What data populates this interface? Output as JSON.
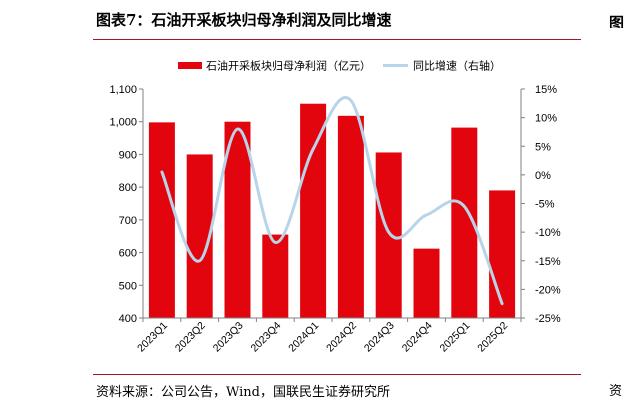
{
  "page": {
    "title": "图表7：石油开采板块归母净利润及同比增速",
    "source": "资料来源：公司公告，Wind，国联民生证券研究所",
    "right_fragment_top": "图",
    "right_fragment_bottom": "资"
  },
  "colors": {
    "bar": "#e3050e",
    "line": "#b8d4e8",
    "rule": "#b10f1f",
    "axis": "#808080"
  },
  "chart_data": {
    "type": "bar",
    "categories": [
      "2023Q1",
      "2023Q2",
      "2023Q3",
      "2023Q4",
      "2024Q1",
      "2024Q2",
      "2024Q3",
      "2024Q4",
      "2025Q1",
      "2025Q2"
    ],
    "series": [
      {
        "name": "石油开采板块归母净利润（亿元）",
        "type": "bar",
        "axis": "left",
        "values": [
          998,
          900,
          1000,
          655,
          1055,
          1018,
          906,
          612,
          982,
          790
        ]
      },
      {
        "name": "同比增速（右轴）",
        "type": "line",
        "axis": "right",
        "smooth": true,
        "values": [
          0.5,
          -15.0,
          8.0,
          -11.8,
          4.5,
          13.0,
          -10.0,
          -7.0,
          -5.5,
          -22.5
        ]
      }
    ],
    "left_axis": {
      "ylim": [
        400,
        1100
      ],
      "ticks": [
        400,
        500,
        600,
        700,
        800,
        900,
        1000,
        1100
      ],
      "tick_labels": [
        "400",
        "500",
        "600",
        "700",
        "800",
        "900",
        "1,000",
        "1,100"
      ]
    },
    "right_axis": {
      "ylim": [
        -25,
        15
      ],
      "ticks": [
        -25,
        -20,
        -15,
        -10,
        -5,
        0,
        5,
        10,
        15
      ],
      "tick_labels": [
        "-25%",
        "-20%",
        "-15%",
        "-10%",
        "-5%",
        "0%",
        "5%",
        "10%",
        "15%"
      ]
    },
    "legend": {
      "position": "top-center",
      "entries": [
        "石油开采板块归母净利润（亿元）",
        "同比增速（右轴）"
      ]
    },
    "grid": false
  }
}
